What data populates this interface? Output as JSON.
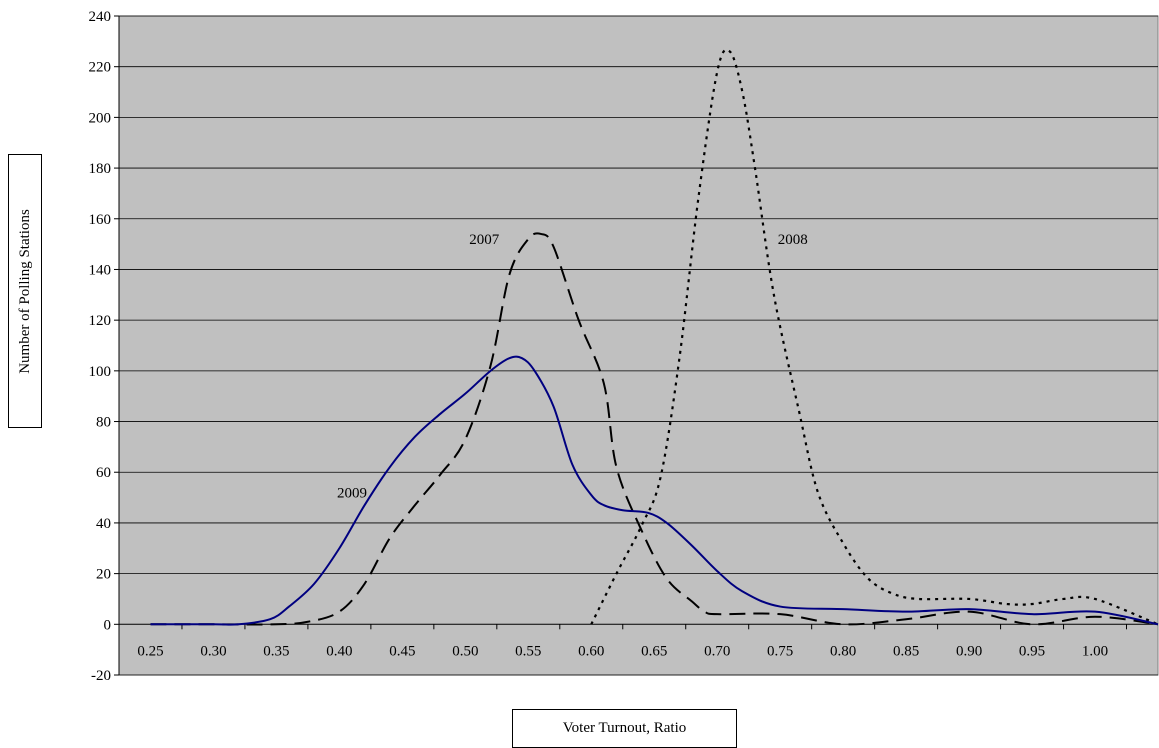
{
  "chart_data": {
    "type": "line",
    "title": "",
    "xlabel": "Voter Turnout, Ratio",
    "ylabel": "Number of Polling Stations",
    "xlim": [
      0.225,
      1.05
    ],
    "ylim": [
      -20,
      240
    ],
    "y_ticks": [
      "-20",
      "0",
      "20",
      "40",
      "60",
      "80",
      "100",
      "120",
      "140",
      "160",
      "180",
      "200",
      "220",
      "240"
    ],
    "x_tick_labels": [
      "0.25",
      "0.30",
      "0.35",
      "0.40",
      "0.45",
      "0.50",
      "0.55",
      "0.60",
      "0.65",
      "0.70",
      "0.75",
      "0.80",
      "0.85",
      "0.90",
      "0.95",
      "1.00"
    ],
    "grid": true,
    "background": "#c0c0c0",
    "annotations": [
      {
        "text": "2007",
        "series": "2007"
      },
      {
        "text": "2008",
        "series": "2008"
      },
      {
        "text": "2009",
        "series": "2009"
      }
    ],
    "series": [
      {
        "name": "2007",
        "style": "dashed",
        "color": "#000000",
        "points": [
          [
            0.25,
            0
          ],
          [
            0.3,
            0
          ],
          [
            0.35,
            0
          ],
          [
            0.375,
            1
          ],
          [
            0.4,
            5
          ],
          [
            0.42,
            16
          ],
          [
            0.44,
            34
          ],
          [
            0.46,
            47
          ],
          [
            0.48,
            59
          ],
          [
            0.5,
            73
          ],
          [
            0.52,
            102
          ],
          [
            0.535,
            138
          ],
          [
            0.55,
            152
          ],
          [
            0.56,
            154
          ],
          [
            0.57,
            149
          ],
          [
            0.59,
            120
          ],
          [
            0.61,
            95
          ],
          [
            0.62,
            62
          ],
          [
            0.64,
            37
          ],
          [
            0.66,
            18
          ],
          [
            0.68,
            9
          ],
          [
            0.69,
            5
          ],
          [
            0.7,
            4
          ],
          [
            0.75,
            4
          ],
          [
            0.8,
            0
          ],
          [
            0.85,
            2
          ],
          [
            0.9,
            5
          ],
          [
            0.95,
            0
          ],
          [
            1.0,
            3
          ],
          [
            1.05,
            0
          ]
        ]
      },
      {
        "name": "2008",
        "style": "dotted",
        "color": "#000000",
        "points": [
          [
            0.6,
            0
          ],
          [
            0.62,
            20
          ],
          [
            0.64,
            39
          ],
          [
            0.655,
            58
          ],
          [
            0.67,
            105
          ],
          [
            0.685,
            168
          ],
          [
            0.7,
            218
          ],
          [
            0.71,
            226
          ],
          [
            0.72,
            210
          ],
          [
            0.73,
            180
          ],
          [
            0.745,
            130
          ],
          [
            0.765,
            84
          ],
          [
            0.78,
            52
          ],
          [
            0.8,
            32
          ],
          [
            0.82,
            18
          ],
          [
            0.84,
            12
          ],
          [
            0.86,
            10
          ],
          [
            0.9,
            10
          ],
          [
            0.93,
            8
          ],
          [
            0.95,
            8
          ],
          [
            0.975,
            10
          ],
          [
            1.0,
            10
          ],
          [
            1.05,
            0
          ]
        ]
      },
      {
        "name": "2009",
        "style": "solid",
        "color": "#000080",
        "points": [
          [
            0.25,
            0
          ],
          [
            0.3,
            0
          ],
          [
            0.32,
            0
          ],
          [
            0.345,
            2
          ],
          [
            0.36,
            7
          ],
          [
            0.38,
            16
          ],
          [
            0.4,
            30
          ],
          [
            0.42,
            47
          ],
          [
            0.44,
            62
          ],
          [
            0.46,
            74
          ],
          [
            0.48,
            83
          ],
          [
            0.5,
            91
          ],
          [
            0.52,
            100
          ],
          [
            0.535,
            105
          ],
          [
            0.545,
            105
          ],
          [
            0.555,
            100
          ],
          [
            0.57,
            86
          ],
          [
            0.585,
            63
          ],
          [
            0.6,
            51
          ],
          [
            0.61,
            47
          ],
          [
            0.625,
            45
          ],
          [
            0.645,
            44
          ],
          [
            0.66,
            40
          ],
          [
            0.68,
            31
          ],
          [
            0.7,
            21
          ],
          [
            0.72,
            13
          ],
          [
            0.75,
            7
          ],
          [
            0.8,
            6
          ],
          [
            0.85,
            5
          ],
          [
            0.9,
            6
          ],
          [
            0.95,
            4
          ],
          [
            1.0,
            5
          ],
          [
            1.05,
            0
          ]
        ]
      }
    ]
  }
}
